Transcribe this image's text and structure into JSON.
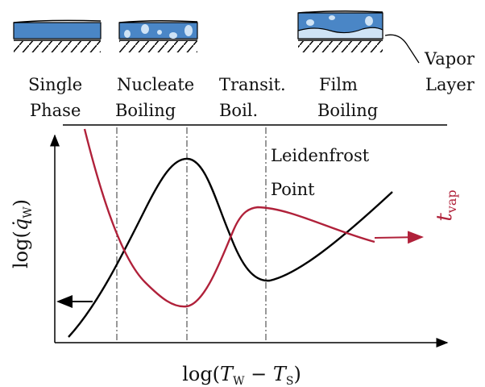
{
  "regimes": [
    {
      "line1": "Single",
      "line2": "Phase"
    },
    {
      "line1": "Nucleate",
      "line2": "Boiling"
    },
    {
      "line1": "Transit.",
      "line2": "Boil."
    },
    {
      "line1": "Film",
      "line2": "Boiling"
    }
  ],
  "vapor_layer": {
    "line1": "Vapor",
    "line2": "Layer"
  },
  "annotation": {
    "line1": "Leidenfrost",
    "line2": "Point"
  },
  "y_label": {
    "prefix": "log(",
    "symbol": "q̇",
    "sub": "W",
    "suffix": ")"
  },
  "y2_label": {
    "symbol": "t",
    "sub": "vap"
  },
  "x_label": {
    "prefix": "log(",
    "symbol1": "T",
    "sub1": "W",
    "minus": " − ",
    "symbol2": "T",
    "sub2": "S",
    "suffix": ")"
  }
}
